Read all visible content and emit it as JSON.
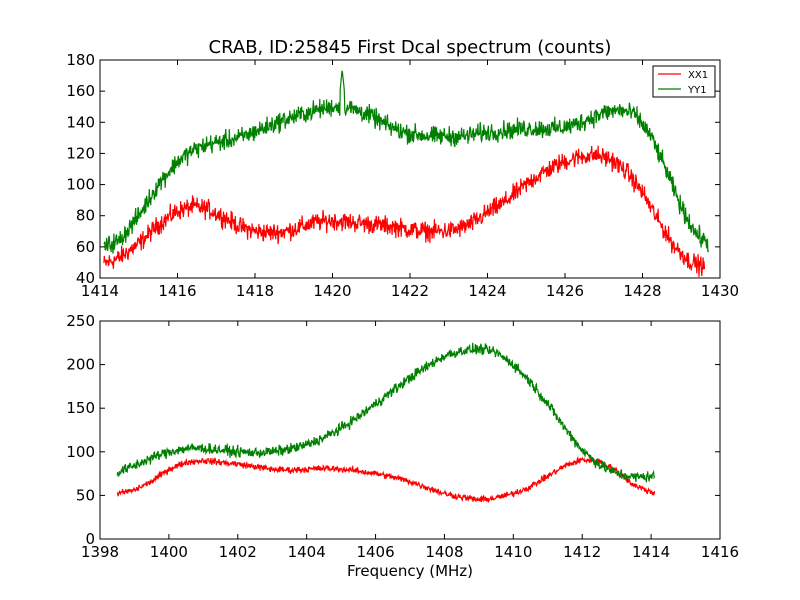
{
  "chart_data": [
    {
      "type": "line",
      "title": "CRAB, ID:25845 First Dcal spectrum (counts)",
      "xlabel": "",
      "ylabel": "",
      "xlim": [
        1414,
        1430
      ],
      "ylim": [
        40,
        180
      ],
      "xticks": [
        "1414",
        "1416",
        "1418",
        "1420",
        "1422",
        "1424",
        "1426",
        "1428",
        "1430"
      ],
      "yticks": [
        "40",
        "60",
        "80",
        "100",
        "120",
        "140",
        "160",
        "180"
      ],
      "legend_position": "top-right",
      "series": [
        {
          "name": "XX1",
          "color": "#ff0000",
          "x": [
            1414.1,
            1414.5,
            1415.0,
            1415.5,
            1416.0,
            1416.4,
            1416.8,
            1417.2,
            1417.6,
            1418.0,
            1418.4,
            1418.8,
            1419.2,
            1419.6,
            1420.0,
            1420.4,
            1420.8,
            1421.2,
            1421.6,
            1422.0,
            1422.4,
            1422.8,
            1423.2,
            1423.6,
            1424.0,
            1424.4,
            1424.8,
            1425.2,
            1425.6,
            1426.0,
            1426.4,
            1426.8,
            1427.2,
            1427.6,
            1428.0,
            1428.4,
            1428.8,
            1429.2,
            1429.6
          ],
          "values": [
            49,
            53,
            62,
            74,
            83,
            86,
            84,
            79,
            73,
            70,
            69,
            70,
            73,
            76,
            77,
            76,
            75,
            74,
            73,
            71,
            70,
            70,
            71,
            75,
            82,
            88,
            96,
            104,
            110,
            115,
            118,
            119,
            116,
            108,
            95,
            77,
            61,
            51,
            47
          ],
          "noise": 5
        },
        {
          "name": "YY1",
          "color": "#008000",
          "x": [
            1414.1,
            1414.5,
            1415.0,
            1415.5,
            1416.0,
            1416.4,
            1416.8,
            1417.2,
            1417.6,
            1418.0,
            1418.4,
            1418.8,
            1419.2,
            1419.6,
            1420.0,
            1420.3,
            1420.6,
            1421.0,
            1421.4,
            1421.8,
            1422.2,
            1422.6,
            1423.0,
            1423.4,
            1423.8,
            1424.2,
            1424.6,
            1425.0,
            1425.4,
            1425.8,
            1426.2,
            1426.6,
            1427.0,
            1427.4,
            1427.8,
            1428.2,
            1428.6,
            1429.0,
            1429.4,
            1429.7
          ],
          "values": [
            60,
            64,
            80,
            100,
            115,
            122,
            126,
            128,
            130,
            134,
            138,
            142,
            145,
            148,
            150,
            150,
            148,
            144,
            138,
            134,
            132,
            131,
            131,
            131,
            133,
            134,
            135,
            136,
            136,
            136,
            138,
            142,
            146,
            148,
            145,
            132,
            110,
            85,
            68,
            62
          ],
          "spikes": [
            {
              "x": 1420.25,
              "y": 174
            }
          ],
          "noise": 5
        }
      ]
    },
    {
      "type": "line",
      "title": "",
      "xlabel": "Frequency (MHz)",
      "ylabel": "",
      "xlim": [
        1398,
        1416
      ],
      "ylim": [
        0,
        250
      ],
      "xticks": [
        "1398",
        "1400",
        "1402",
        "1404",
        "1406",
        "1408",
        "1410",
        "1412",
        "1414",
        "1416"
      ],
      "yticks": [
        "0",
        "50",
        "100",
        "150",
        "200",
        "250"
      ],
      "series": [
        {
          "name": "XX1",
          "color": "#ff0000",
          "x": [
            1398.5,
            1399.0,
            1399.5,
            1400.0,
            1400.5,
            1401.0,
            1401.5,
            1402.0,
            1402.5,
            1403.0,
            1403.5,
            1404.0,
            1404.5,
            1405.0,
            1405.5,
            1406.0,
            1406.5,
            1407.0,
            1407.5,
            1408.0,
            1408.5,
            1409.0,
            1409.5,
            1410.0,
            1410.5,
            1411.0,
            1411.5,
            1412.0,
            1412.5,
            1413.0,
            1413.5,
            1414.1
          ],
          "values": [
            52,
            56,
            66,
            80,
            88,
            90,
            88,
            86,
            83,
            80,
            79,
            80,
            81,
            80,
            78,
            75,
            71,
            66,
            59,
            52,
            48,
            45,
            47,
            52,
            60,
            72,
            84,
            91,
            89,
            78,
            62,
            52
          ],
          "noise": 3
        },
        {
          "name": "YY1",
          "color": "#008000",
          "x": [
            1398.5,
            1399.0,
            1399.5,
            1400.0,
            1400.5,
            1401.0,
            1401.5,
            1402.0,
            1402.5,
            1403.0,
            1403.5,
            1404.0,
            1404.5,
            1405.0,
            1405.5,
            1406.0,
            1406.5,
            1407.0,
            1407.5,
            1408.0,
            1408.5,
            1409.0,
            1409.5,
            1410.0,
            1410.5,
            1411.0,
            1411.5,
            1412.0,
            1412.5,
            1413.0,
            1413.5,
            1414.1
          ],
          "values": [
            76,
            84,
            93,
            100,
            104,
            104,
            102,
            100,
            99,
            100,
            103,
            108,
            116,
            127,
            140,
            155,
            170,
            185,
            198,
            210,
            216,
            218,
            214,
            200,
            180,
            155,
            127,
            102,
            85,
            75,
            71,
            72
          ],
          "noise": 5
        }
      ]
    }
  ]
}
